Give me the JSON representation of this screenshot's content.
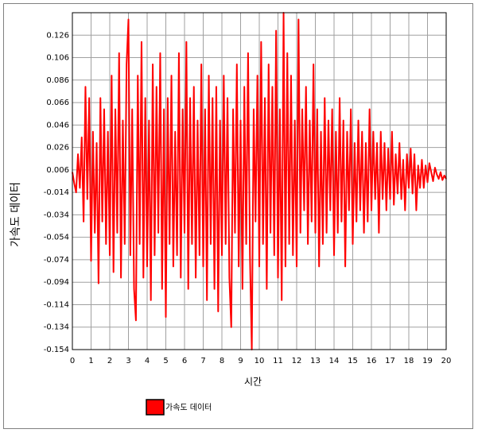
{
  "chart_data": {
    "type": "line",
    "ylabel": "가속도 데이터",
    "xlabel": "시간",
    "x": [
      0,
      0.1,
      0.2,
      0.3,
      0.4,
      0.5,
      0.6,
      0.7,
      0.8,
      0.9,
      1,
      1.1,
      1.2,
      1.3,
      1.4,
      1.5,
      1.6,
      1.7,
      1.8,
      1.9,
      2,
      2.1,
      2.2,
      2.3,
      2.4,
      2.5,
      2.6,
      2.7,
      2.8,
      2.9,
      3,
      3.1,
      3.2,
      3.3,
      3.4,
      3.5,
      3.6,
      3.7,
      3.8,
      3.9,
      4,
      4.1,
      4.2,
      4.3,
      4.4,
      4.5,
      4.6,
      4.7,
      4.8,
      4.9,
      5,
      5.1,
      5.2,
      5.3,
      5.4,
      5.5,
      5.6,
      5.7,
      5.8,
      5.9,
      6,
      6.1,
      6.2,
      6.3,
      6.4,
      6.5,
      6.6,
      6.7,
      6.8,
      6.9,
      7,
      7.1,
      7.2,
      7.3,
      7.4,
      7.5,
      7.6,
      7.7,
      7.8,
      7.9,
      8,
      8.1,
      8.2,
      8.3,
      8.4,
      8.5,
      8.6,
      8.7,
      8.8,
      8.9,
      9,
      9.1,
      9.2,
      9.3,
      9.4,
      9.5,
      9.6,
      9.7,
      9.8,
      9.9,
      10,
      10.1,
      10.2,
      10.3,
      10.4,
      10.5,
      10.6,
      10.7,
      10.8,
      10.9,
      11,
      11.1,
      11.2,
      11.3,
      11.4,
      11.5,
      11.6,
      11.7,
      11.8,
      11.9,
      12,
      12.1,
      12.2,
      12.3,
      12.4,
      12.5,
      12.6,
      12.7,
      12.8,
      12.9,
      13,
      13.1,
      13.2,
      13.3,
      13.4,
      13.5,
      13.6,
      13.7,
      13.8,
      13.9,
      14,
      14.1,
      14.2,
      14.3,
      14.4,
      14.5,
      14.6,
      14.7,
      14.8,
      14.9,
      15,
      15.1,
      15.2,
      15.3,
      15.4,
      15.5,
      15.6,
      15.7,
      15.8,
      15.9,
      16,
      16.1,
      16.2,
      16.3,
      16.4,
      16.5,
      16.6,
      16.7,
      16.8,
      16.9,
      17,
      17.1,
      17.2,
      17.3,
      17.4,
      17.5,
      17.6,
      17.7,
      17.8,
      17.9,
      18,
      18.1,
      18.2,
      18.3,
      18.4,
      18.5,
      18.6,
      18.7,
      18.8,
      18.9,
      19,
      19.1,
      19.2,
      19.3,
      19.4,
      19.5,
      19.6,
      19.7,
      19.8,
      19.9,
      20
    ],
    "series": [
      {
        "name": "가속도 데이터",
        "color": "#ff0000",
        "values": [
          0.004,
          -0.006,
          -0.014,
          0.02,
          -0.01,
          0.035,
          -0.04,
          0.08,
          -0.02,
          0.07,
          -0.075,
          0.04,
          -0.05,
          0.03,
          -0.095,
          0.07,
          -0.04,
          0.06,
          -0.06,
          0.04,
          -0.07,
          0.09,
          -0.085,
          0.06,
          -0.05,
          0.11,
          -0.09,
          0.05,
          -0.06,
          0.1,
          0.14,
          -0.07,
          0.06,
          -0.1,
          -0.128,
          0.09,
          -0.06,
          0.12,
          -0.09,
          0.07,
          -0.08,
          0.05,
          -0.11,
          0.1,
          -0.07,
          0.08,
          -0.05,
          0.11,
          -0.1,
          0.06,
          -0.125,
          0.07,
          -0.06,
          0.09,
          -0.08,
          0.04,
          -0.07,
          0.11,
          -0.09,
          0.06,
          -0.05,
          0.12,
          -0.1,
          0.07,
          -0.06,
          0.08,
          -0.09,
          0.05,
          -0.07,
          0.1,
          -0.08,
          0.06,
          -0.11,
          0.09,
          -0.06,
          0.07,
          -0.1,
          0.08,
          -0.12,
          0.05,
          -0.07,
          0.09,
          -0.06,
          0.07,
          -0.09,
          -0.134,
          0.06,
          -0.05,
          0.1,
          -0.08,
          0.05,
          -0.1,
          0.08,
          -0.06,
          0.11,
          -0.07,
          -0.154,
          0.06,
          -0.04,
          0.09,
          -0.08,
          0.12,
          -0.06,
          0.07,
          -0.1,
          0.1,
          -0.05,
          0.08,
          -0.07,
          0.13,
          -0.09,
          0.06,
          -0.11,
          0.146,
          -0.08,
          0.11,
          -0.06,
          0.09,
          -0.07,
          0.05,
          -0.08,
          0.14,
          -0.05,
          0.06,
          -0.03,
          0.08,
          -0.06,
          0.05,
          -0.04,
          0.1,
          -0.05,
          0.06,
          -0.08,
          0.04,
          -0.06,
          0.07,
          -0.05,
          0.05,
          -0.03,
          0.06,
          -0.07,
          0.04,
          -0.05,
          0.07,
          -0.04,
          0.05,
          -0.08,
          0.04,
          -0.03,
          0.06,
          -0.06,
          0.03,
          -0.04,
          0.05,
          -0.03,
          0.04,
          -0.05,
          0.03,
          -0.04,
          0.06,
          -0.03,
          0.04,
          -0.02,
          0.03,
          -0.05,
          0.04,
          -0.02,
          0.03,
          -0.03,
          0.025,
          -0.02,
          0.04,
          -0.025,
          0.02,
          -0.015,
          0.03,
          -0.02,
          0.015,
          -0.03,
          0.02,
          -0.01,
          0.025,
          -0.015,
          0.02,
          -0.03,
          0.01,
          -0.01,
          0.015,
          -0.01,
          0.01,
          -0.005,
          0.012,
          0.004,
          -0.004,
          0.008,
          0.002,
          -0.002,
          0.004,
          -0.003,
          0.001,
          -0.002
        ]
      }
    ],
    "xlim": [
      0,
      20
    ],
    "xticks": [
      0,
      1,
      2,
      3,
      4,
      5,
      6,
      7,
      8,
      9,
      10,
      11,
      12,
      13,
      14,
      15,
      16,
      17,
      18,
      19,
      20
    ],
    "ylim": [
      -0.154,
      0.146
    ],
    "yticks": [
      -0.154,
      -0.134,
      -0.114,
      -0.094,
      -0.074,
      -0.054,
      -0.034,
      -0.014,
      0.006,
      0.026,
      0.046,
      0.066,
      0.086,
      0.106,
      0.126
    ],
    "grid": true,
    "legend": "bottom-left"
  }
}
